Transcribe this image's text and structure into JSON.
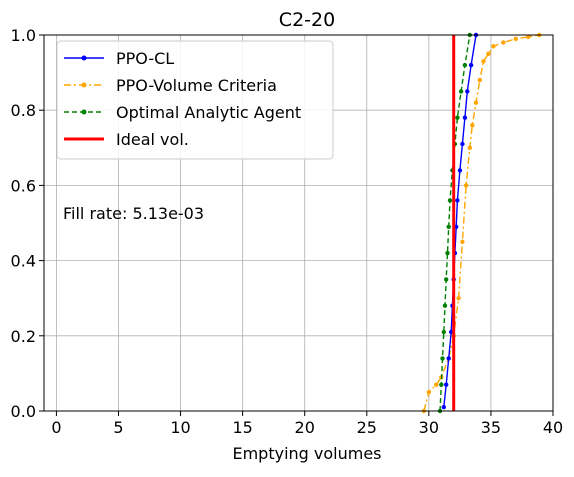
{
  "chart_data": {
    "type": "line",
    "title": "C2-20",
    "xlabel": "Emptying volumes",
    "ylabel": "",
    "xlim": [
      -1,
      40
    ],
    "ylim": [
      0,
      1.0
    ],
    "xticks": [
      0,
      5,
      10,
      15,
      20,
      25,
      30,
      35,
      40
    ],
    "xtick_labels": [
      "0",
      "5",
      "10",
      "15",
      "20",
      "25",
      "30",
      "35",
      "40"
    ],
    "yticks": [
      0.0,
      0.2,
      0.4,
      0.6,
      0.8,
      1.0
    ],
    "ytick_labels": [
      "0.0",
      "0.2",
      "0.4",
      "0.6",
      "0.8",
      "1.0"
    ],
    "grid": true,
    "legend_position": "upper-left",
    "annotation": "Fill rate: 5.13e-03",
    "series": [
      {
        "name": "PPO-CL",
        "color": "#0000ff",
        "style": "solid",
        "marker": "dot",
        "x": [
          31.2,
          31.4,
          31.6,
          31.8,
          31.9,
          32.0,
          32.1,
          32.2,
          32.3,
          32.5,
          32.7,
          32.9,
          33.1,
          33.4,
          33.8
        ],
        "y": [
          0.01,
          0.07,
          0.14,
          0.21,
          0.28,
          0.35,
          0.42,
          0.49,
          0.56,
          0.64,
          0.71,
          0.78,
          0.85,
          0.92,
          1.0
        ]
      },
      {
        "name": "PPO-Volume Criteria",
        "color": "#ffa500",
        "style": "dashdot",
        "marker": "dot",
        "x": [
          29.6,
          30.0,
          30.6,
          31.0,
          31.6,
          32.0,
          32.4,
          32.7,
          33.0,
          33.3,
          33.5,
          33.8,
          34.1,
          34.4,
          34.8,
          35.2,
          36.0,
          37.0,
          38.0,
          38.9
        ],
        "y": [
          0.0,
          0.05,
          0.07,
          0.09,
          0.14,
          0.2,
          0.3,
          0.45,
          0.6,
          0.7,
          0.76,
          0.82,
          0.88,
          0.93,
          0.95,
          0.97,
          0.98,
          0.99,
          0.995,
          1.0
        ]
      },
      {
        "name": "Optimal Analytic Agent",
        "color": "#008000",
        "style": "dashed",
        "marker": "dot",
        "x": [
          30.9,
          31.0,
          31.1,
          31.2,
          31.3,
          31.4,
          31.5,
          31.6,
          31.7,
          31.9,
          32.1,
          32.3,
          32.6,
          32.9,
          33.3
        ],
        "y": [
          0.0,
          0.07,
          0.14,
          0.21,
          0.28,
          0.35,
          0.42,
          0.49,
          0.56,
          0.64,
          0.71,
          0.78,
          0.85,
          0.92,
          1.0
        ]
      },
      {
        "name": "Ideal vol.",
        "color": "#ff0000",
        "style": "solid",
        "marker": "none",
        "x": [
          32.0,
          32.0
        ],
        "y": [
          0.0,
          1.0
        ]
      }
    ]
  }
}
